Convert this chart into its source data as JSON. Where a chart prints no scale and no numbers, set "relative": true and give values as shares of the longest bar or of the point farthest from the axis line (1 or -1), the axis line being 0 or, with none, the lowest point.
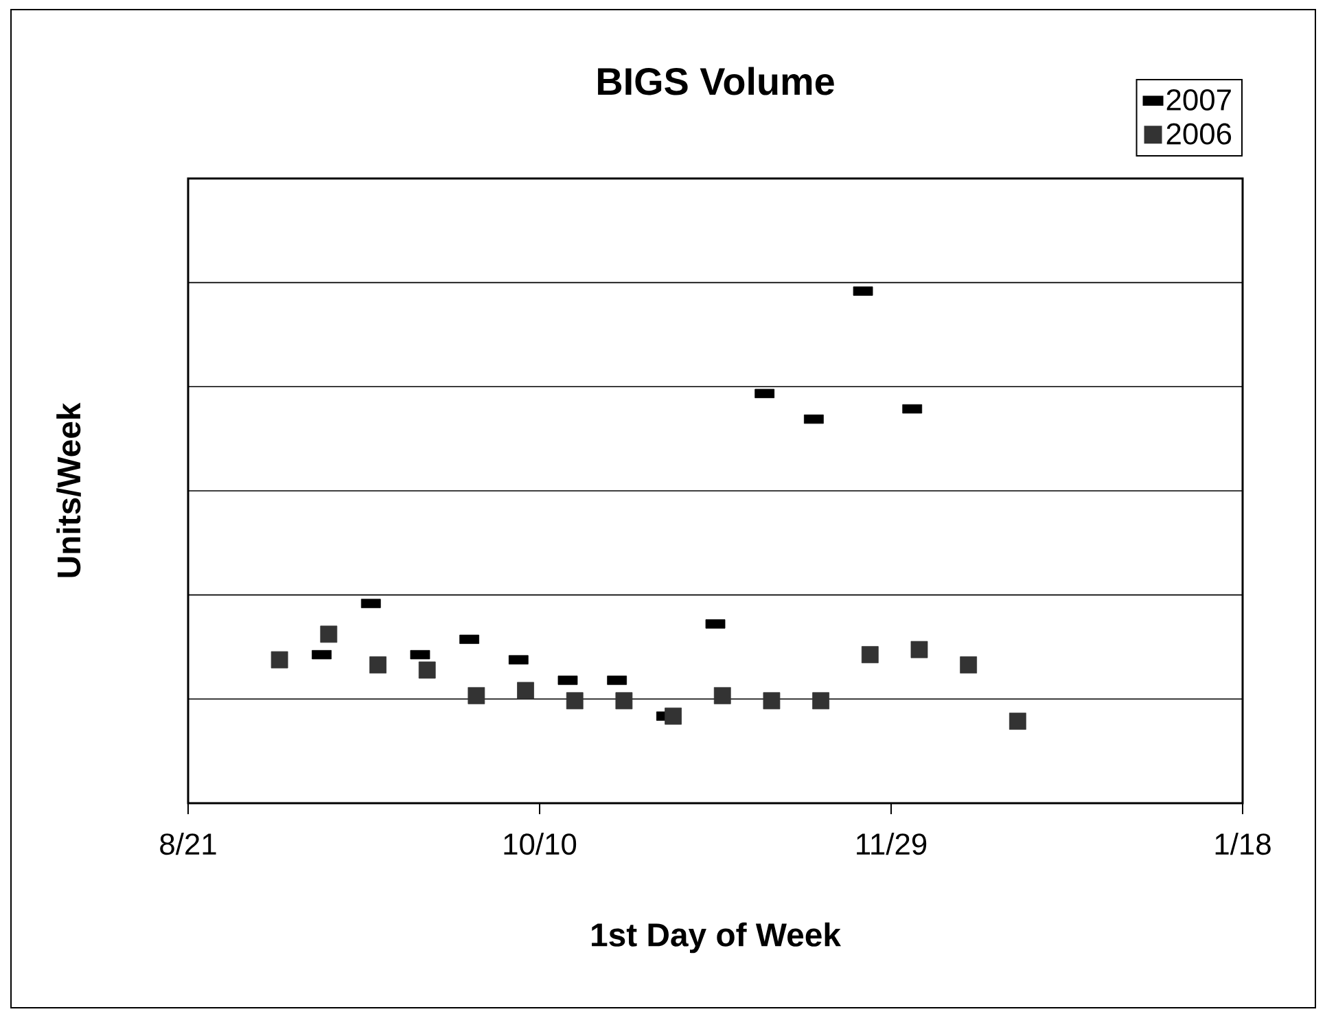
{
  "chart_data": {
    "type": "scatter",
    "title": "BIGS Volume",
    "xlabel": "1st Day of Week",
    "ylabel": "Units/Week",
    "relative": true,
    "grid": "y",
    "legend": "top right",
    "tick_labels": "x",
    "xlim": [
      "2006-08-21",
      "2007-01-18"
    ],
    "xticks": [
      {
        "value": "2006-08-21",
        "label": "8/21"
      },
      {
        "value": "2006-10-10",
        "label": "10/10"
      },
      {
        "value": "2006-11-29",
        "label": "11/29"
      },
      {
        "value": "2007-01-18",
        "label": "1/18"
      }
    ],
    "series": [
      {
        "name": "2007",
        "color": "#000000",
        "x": [
          "2006-09-09",
          "2006-09-16",
          "2006-09-23",
          "2006-09-30",
          "2006-10-07",
          "2006-10-14",
          "2006-10-21",
          "2006-10-28",
          "2006-11-04",
          "2006-11-11",
          "2006-11-18",
          "2006-11-25",
          "2006-12-02"
        ],
        "values": [
          0.29,
          0.39,
          0.29,
          0.32,
          0.28,
          0.24,
          0.24,
          0.17,
          0.35,
          0.8,
          0.75,
          1,
          0.77
        ]
      },
      {
        "name": "2006",
        "color": "#333333",
        "marker": "square",
        "x": [
          "2006-09-03",
          "2006-09-10",
          "2006-09-17",
          "2006-09-24",
          "2006-10-01",
          "2006-10-08",
          "2006-10-15",
          "2006-10-22",
          "2006-10-29",
          "2006-11-05",
          "2006-11-12",
          "2006-11-19",
          "2006-11-26",
          "2006-12-03",
          "2006-12-10",
          "2006-12-17"
        ],
        "values": [
          0.28,
          0.33,
          0.27,
          0.26,
          0.21,
          0.22,
          0.2,
          0.2,
          0.17,
          0.21,
          0.2,
          0.2,
          0.29,
          0.3,
          0.27,
          0.16
        ]
      }
    ]
  }
}
